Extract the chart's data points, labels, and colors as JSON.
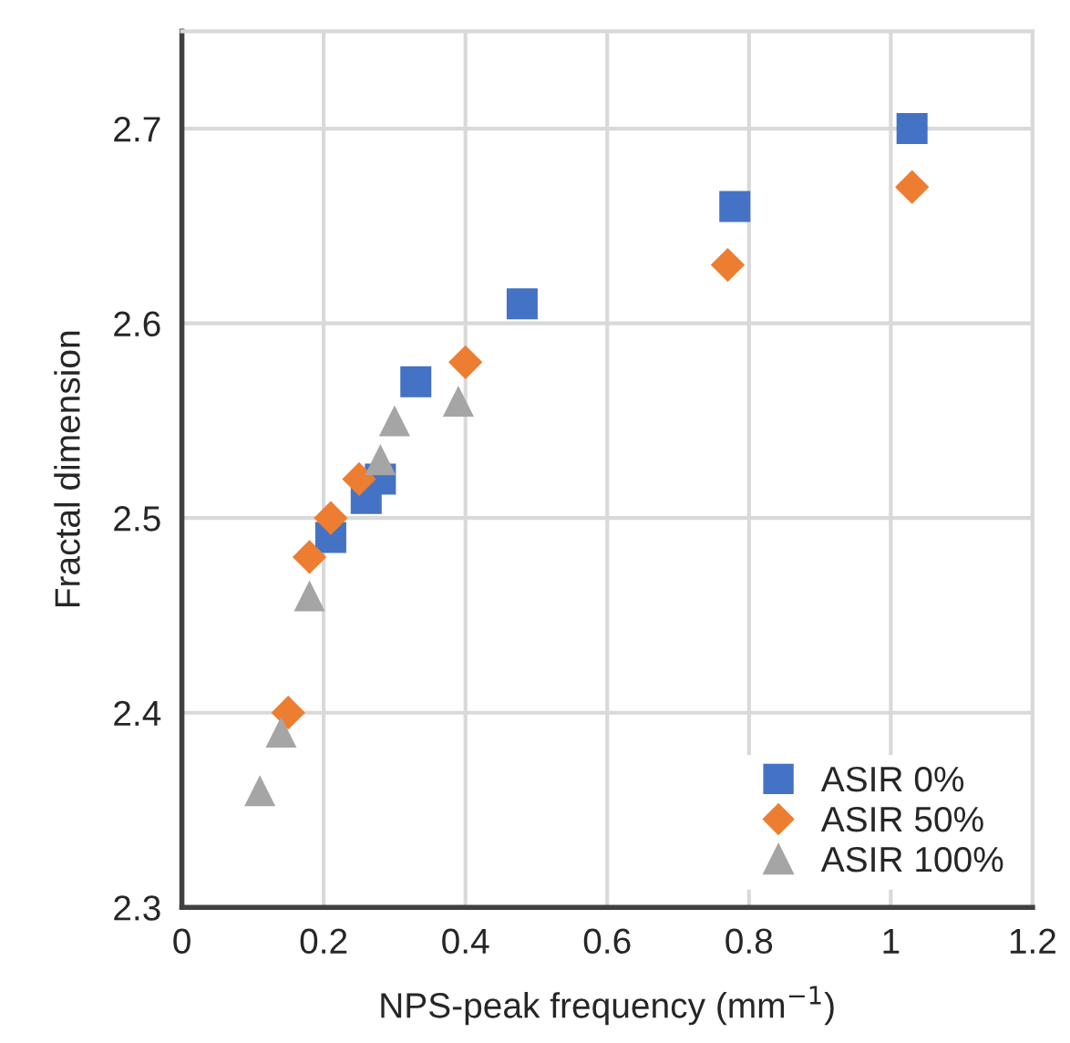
{
  "chart_data": {
    "type": "scatter",
    "xlabel": "NPS-peak frequency (mm$^{−1}$)",
    "ylabel": "Fractal dimension",
    "xlim": [
      0,
      1.2
    ],
    "xticks": [
      0,
      0.2,
      0.4,
      0.6,
      0.8,
      1,
      1.2
    ],
    "ylim": [
      2.3,
      2.75
    ],
    "yticks": [
      2.3,
      2.4,
      2.5,
      2.6,
      2.7
    ],
    "grid": true,
    "legend": "bottom right",
    "series": [
      {
        "name": "ASIR 0%",
        "color": "#4472c4",
        "marker": "square",
        "x": [
          0.21,
          0.26,
          0.28,
          0.33,
          0.48,
          0.78,
          1.03
        ],
        "values": [
          2.49,
          2.51,
          2.52,
          2.57,
          2.61,
          2.66,
          2.7
        ]
      },
      {
        "name": "ASIR 50%",
        "color": "#ed7d31",
        "marker": "diamond",
        "x": [
          0.15,
          0.18,
          0.21,
          0.25,
          0.4,
          0.77,
          1.03
        ],
        "values": [
          2.4,
          2.48,
          2.5,
          2.52,
          2.58,
          2.63,
          2.67
        ]
      },
      {
        "name": "ASIR 100%",
        "color": "#a5a5a5",
        "marker": "triangle",
        "x": [
          0.11,
          0.14,
          0.18,
          0.28,
          0.3,
          0.39
        ],
        "values": [
          2.36,
          2.39,
          2.46,
          2.53,
          2.55,
          2.56
        ]
      }
    ]
  }
}
